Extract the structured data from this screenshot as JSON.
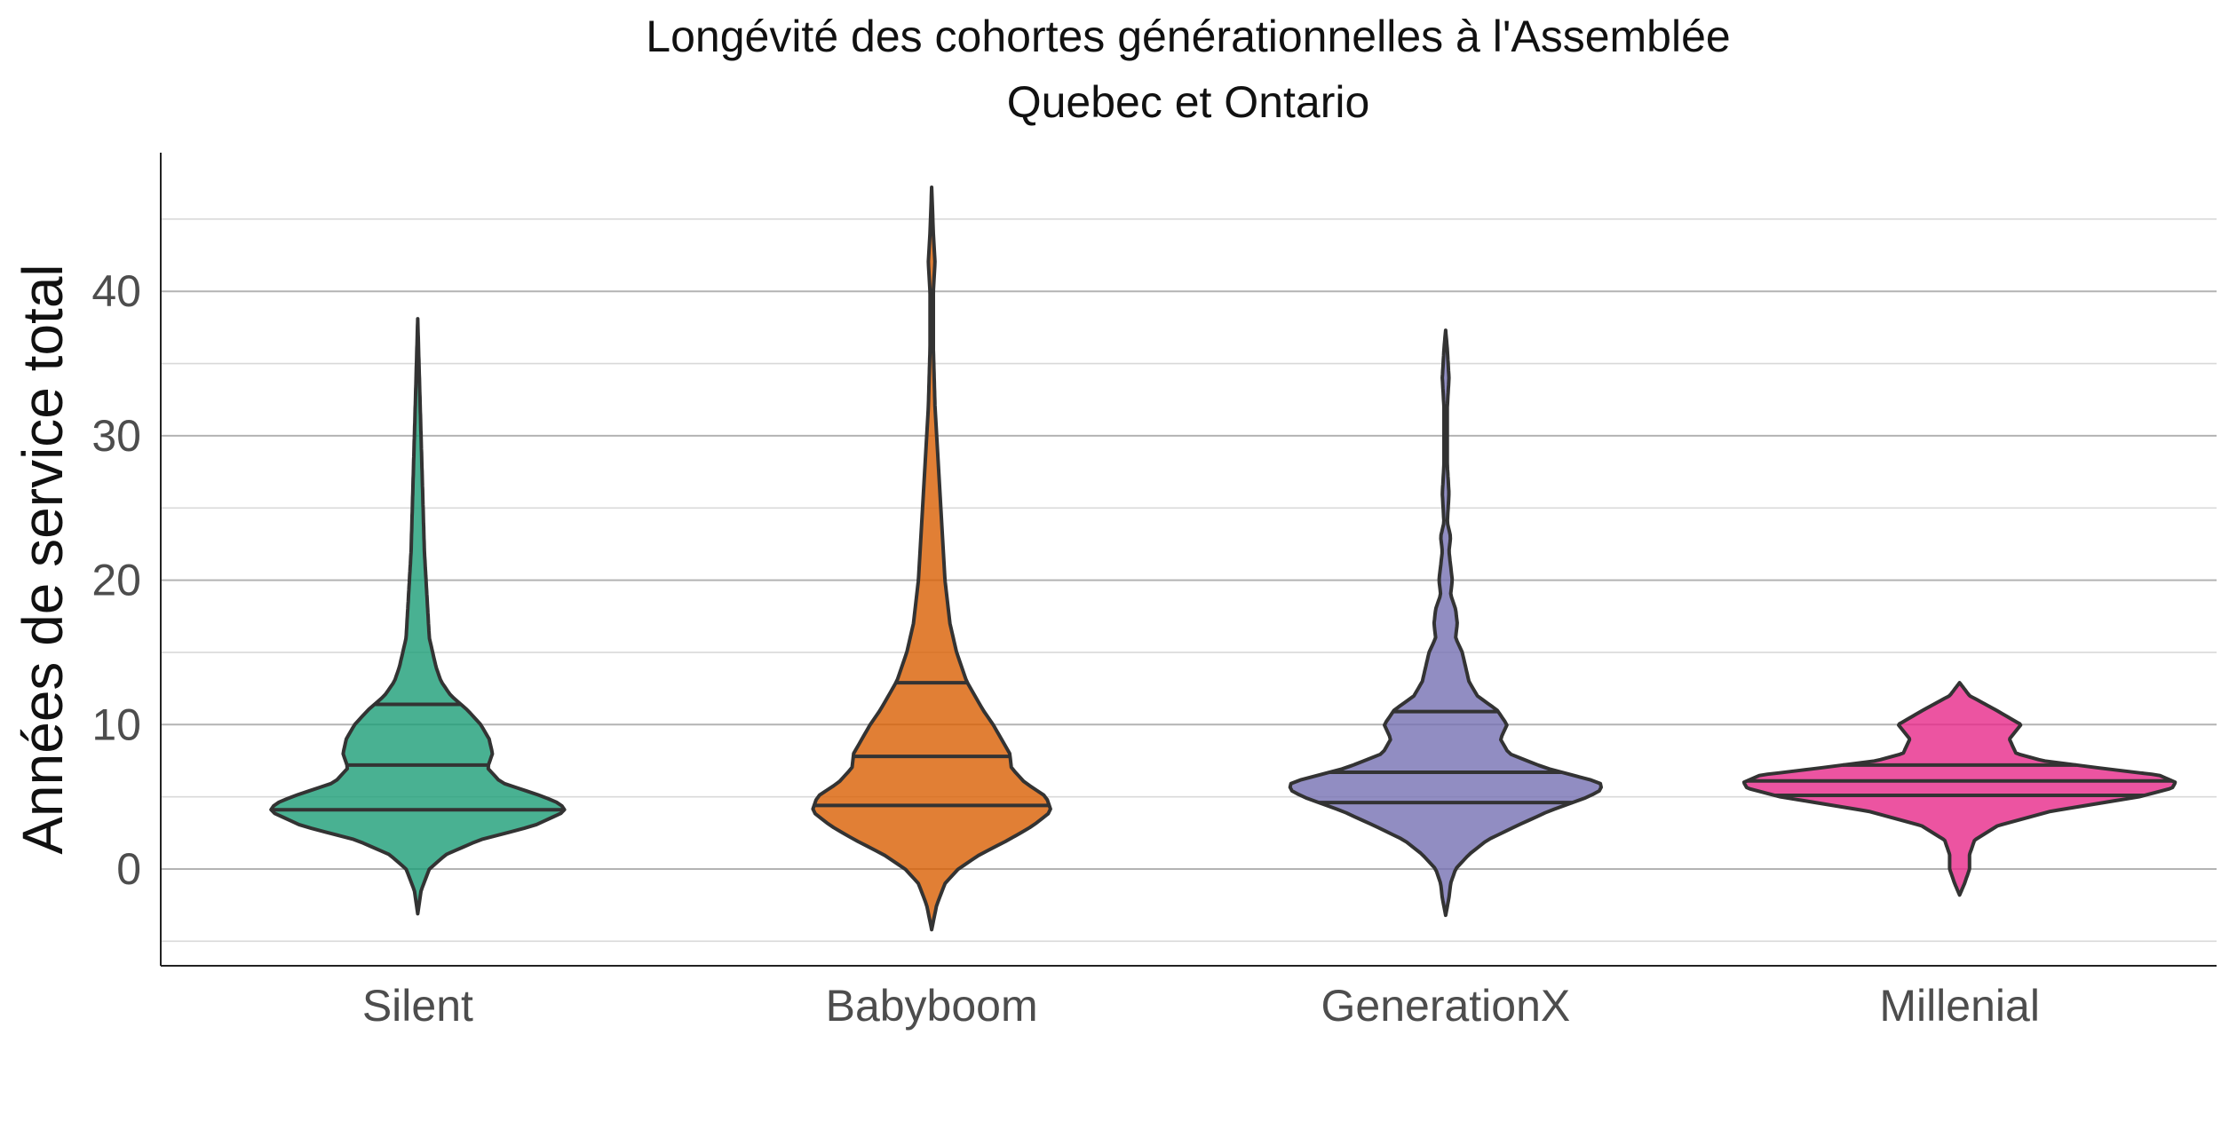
{
  "chart_data": {
    "type": "violin",
    "title": "Longévité des cohortes générationnelles à l'Assemblée",
    "subtitle": "Quebec et Ontario",
    "xlabel": "",
    "ylabel": "Années de service total",
    "ylim": [
      -6.7,
      49.6
    ],
    "yticks": [
      0,
      10,
      20,
      30,
      40
    ],
    "grid": true,
    "legend": "none",
    "categories": [
      "Silent",
      "Babyboom",
      "GenerationX",
      "Millenial"
    ],
    "series": [
      {
        "category": "Silent",
        "color": "#1B9E77",
        "y_range": [
          -3.1,
          38.1
        ],
        "quartiles": [
          4.1,
          7.2,
          11.4
        ],
        "density": [
          [
            -3.1,
            0.0
          ],
          [
            -1.5,
            0.02
          ],
          [
            0,
            0.07
          ],
          [
            1,
            0.17
          ],
          [
            2,
            0.37
          ],
          [
            3,
            0.7
          ],
          [
            4,
            0.89
          ],
          [
            4.5,
            0.86
          ],
          [
            5,
            0.76
          ],
          [
            6,
            0.5
          ],
          [
            7,
            0.42
          ],
          [
            8,
            0.45
          ],
          [
            9,
            0.43
          ],
          [
            10,
            0.38
          ],
          [
            11,
            0.3
          ],
          [
            12,
            0.2
          ],
          [
            13,
            0.14
          ],
          [
            14,
            0.11
          ],
          [
            16,
            0.07
          ],
          [
            18,
            0.06
          ],
          [
            22,
            0.04
          ],
          [
            26,
            0.03
          ],
          [
            30,
            0.02
          ],
          [
            34,
            0.01
          ],
          [
            38.1,
            0.0
          ]
        ]
      },
      {
        "category": "Babyboom",
        "color": "#D95F02",
        "y_range": [
          -4.2,
          47.2
        ],
        "quartiles": [
          4.4,
          7.8,
          12.9
        ],
        "density": [
          [
            -4.2,
            0.0
          ],
          [
            -2.5,
            0.03
          ],
          [
            -1,
            0.08
          ],
          [
            0,
            0.16
          ],
          [
            1,
            0.29
          ],
          [
            2,
            0.46
          ],
          [
            3,
            0.61
          ],
          [
            4,
            0.72
          ],
          [
            5,
            0.69
          ],
          [
            6,
            0.56
          ],
          [
            7,
            0.48
          ],
          [
            8,
            0.47
          ],
          [
            9,
            0.42
          ],
          [
            10,
            0.37
          ],
          [
            11,
            0.31
          ],
          [
            12,
            0.26
          ],
          [
            13,
            0.21
          ],
          [
            15,
            0.15
          ],
          [
            17,
            0.11
          ],
          [
            20,
            0.08
          ],
          [
            24,
            0.06
          ],
          [
            28,
            0.04
          ],
          [
            32,
            0.02
          ],
          [
            36,
            0.01
          ],
          [
            40,
            0.01
          ],
          [
            42,
            0.02
          ],
          [
            44,
            0.01
          ],
          [
            47.2,
            0.0
          ]
        ]
      },
      {
        "category": "GenerationX",
        "color": "#7570B3",
        "y_range": [
          -3.2,
          37.3
        ],
        "quartiles": [
          4.6,
          6.7,
          10.9
        ],
        "density": [
          [
            -3.2,
            0.0
          ],
          [
            -2,
            0.02
          ],
          [
            -1,
            0.03
          ],
          [
            0,
            0.06
          ],
          [
            1,
            0.14
          ],
          [
            2,
            0.25
          ],
          [
            3,
            0.43
          ],
          [
            4,
            0.62
          ],
          [
            5,
            0.86
          ],
          [
            5.5,
            0.94
          ],
          [
            6,
            0.93
          ],
          [
            7,
            0.6
          ],
          [
            8,
            0.38
          ],
          [
            9,
            0.33
          ],
          [
            10,
            0.37
          ],
          [
            11,
            0.31
          ],
          [
            12,
            0.19
          ],
          [
            13,
            0.14
          ],
          [
            14,
            0.12
          ],
          [
            15,
            0.1
          ],
          [
            16,
            0.06
          ],
          [
            17,
            0.07
          ],
          [
            18,
            0.06
          ],
          [
            19,
            0.03
          ],
          [
            20,
            0.04
          ],
          [
            21,
            0.03
          ],
          [
            22,
            0.02
          ],
          [
            23,
            0.03
          ],
          [
            24,
            0.01
          ],
          [
            26,
            0.02
          ],
          [
            28,
            0.01
          ],
          [
            30,
            0.01
          ],
          [
            32,
            0.01
          ],
          [
            34,
            0.02
          ],
          [
            36,
            0.01
          ],
          [
            37.3,
            0.0
          ]
        ]
      },
      {
        "category": "Millenial",
        "color": "#E7298A",
        "y_range": [
          -1.8,
          12.9
        ],
        "quartiles": [
          5.1,
          6.1,
          7.2
        ],
        "density": [
          [
            -1.8,
            0.0
          ],
          [
            -1,
            0.03
          ],
          [
            0,
            0.06
          ],
          [
            1,
            0.06
          ],
          [
            2,
            0.09
          ],
          [
            3,
            0.23
          ],
          [
            4,
            0.55
          ],
          [
            5,
            1.08
          ],
          [
            5.6,
            1.28
          ],
          [
            6,
            1.3
          ],
          [
            6.5,
            1.2
          ],
          [
            7,
            0.84
          ],
          [
            7.5,
            0.5
          ],
          [
            8,
            0.34
          ],
          [
            9,
            0.3
          ],
          [
            10,
            0.37
          ],
          [
            11,
            0.22
          ],
          [
            12,
            0.06
          ],
          [
            12.9,
            0.0
          ]
        ]
      }
    ]
  }
}
